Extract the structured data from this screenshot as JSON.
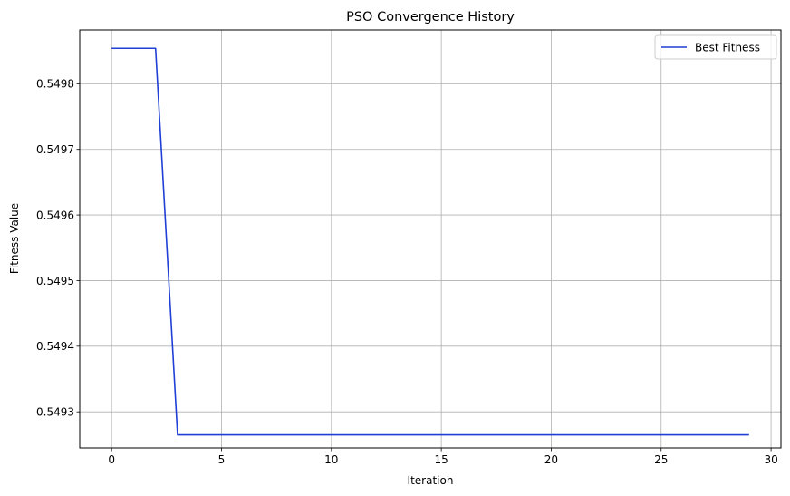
{
  "chart_data": {
    "type": "line",
    "title": "PSO Convergence History",
    "xlabel": "Iteration",
    "ylabel": "Fitness Value",
    "xlim": [
      -1.45,
      30.45
    ],
    "ylim": [
      0.549245,
      0.549882
    ],
    "xticks": [
      0,
      5,
      10,
      15,
      20,
      25,
      30
    ],
    "yticks": [
      0.5493,
      0.5494,
      0.5495,
      0.5496,
      0.5497,
      0.5498
    ],
    "grid": true,
    "legend_position": "top-right",
    "series": [
      {
        "name": "Best Fitness",
        "color": "#1f3fd6",
        "x": [
          0,
          1,
          2,
          3,
          4,
          5,
          6,
          7,
          8,
          9,
          10,
          11,
          12,
          13,
          14,
          15,
          16,
          17,
          18,
          19,
          20,
          21,
          22,
          23,
          24,
          25,
          26,
          27,
          28,
          29
        ],
        "y": [
          0.549854,
          0.549854,
          0.549854,
          0.549265,
          0.549265,
          0.549265,
          0.549265,
          0.549265,
          0.549265,
          0.549265,
          0.549265,
          0.549265,
          0.549265,
          0.549265,
          0.549265,
          0.549265,
          0.549265,
          0.549265,
          0.549265,
          0.549265,
          0.549265,
          0.549265,
          0.549265,
          0.549265,
          0.549265,
          0.549265,
          0.549265,
          0.549265,
          0.549265,
          0.549265
        ]
      }
    ]
  }
}
